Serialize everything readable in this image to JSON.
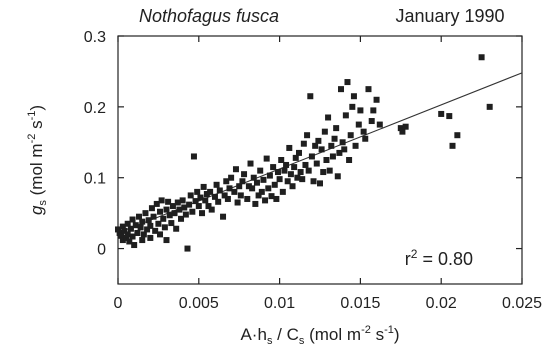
{
  "chart_data": {
    "type": "scatter",
    "title_species": "Nothofagus fusca",
    "title_date": "January 1990",
    "xlabel": {
      "prefix": "A·h",
      "sub1": "s",
      "mid": " / C",
      "sub2": "s",
      "unit": " (mol m",
      "sup": "-2",
      "unit_end": " s",
      "sup2": "-1",
      "close": ")"
    },
    "ylabel": {
      "main": "g",
      "sub": "s",
      "unit": " (mol m",
      "sup": "-2",
      "unit_end": " s",
      "sup2": "-1",
      "close": ")"
    },
    "annotation": {
      "text": "r",
      "sup": "2",
      "rest": " = 0.80"
    },
    "xlim": [
      0,
      0.025
    ],
    "ylim": [
      -0.05,
      0.3
    ],
    "xticks": [
      0,
      0.005,
      0.01,
      0.015,
      0.02,
      0.025
    ],
    "xtick_labels": [
      "0",
      "0.005",
      "0.01",
      "0.015",
      "0.02",
      "0.025"
    ],
    "yticks": [
      0,
      0.1,
      0.2,
      0.3
    ],
    "ytick_labels": [
      "0",
      "0.1",
      "0.2",
      "0.3"
    ],
    "regression": {
      "x": [
        0,
        0.025
      ],
      "y": [
        0.022,
        0.248
      ]
    },
    "points": [
      [
        0.0,
        0.027
      ],
      [
        0.0001,
        0.022
      ],
      [
        0.0002,
        0.018
      ],
      [
        0.0003,
        0.012
      ],
      [
        0.0003,
        0.031
      ],
      [
        0.0004,
        0.025
      ],
      [
        0.0005,
        0.015
      ],
      [
        0.0006,
        0.035
      ],
      [
        0.0006,
        0.02
      ],
      [
        0.0007,
        0.01
      ],
      [
        0.0008,
        0.028
      ],
      [
        0.0009,
        0.041
      ],
      [
        0.0009,
        0.017
      ],
      [
        0.001,
        0.005
      ],
      [
        0.0011,
        0.033
      ],
      [
        0.0012,
        0.022
      ],
      [
        0.0013,
        0.045
      ],
      [
        0.0014,
        0.03
      ],
      [
        0.0015,
        0.012
      ],
      [
        0.0015,
        0.038
      ],
      [
        0.0016,
        0.02
      ],
      [
        0.0017,
        0.05
      ],
      [
        0.0018,
        0.027
      ],
      [
        0.0019,
        0.04
      ],
      [
        0.002,
        0.015
      ],
      [
        0.002,
        0.032
      ],
      [
        0.0021,
        0.057
      ],
      [
        0.0022,
        0.045
      ],
      [
        0.0023,
        0.025
      ],
      [
        0.0024,
        0.063
      ],
      [
        0.0025,
        0.035
      ],
      [
        0.0026,
        0.052
      ],
      [
        0.0026,
        0.02
      ],
      [
        0.0027,
        0.068
      ],
      [
        0.0028,
        0.042
      ],
      [
        0.0029,
        0.03
      ],
      [
        0.003,
        0.055
      ],
      [
        0.003,
        0.012
      ],
      [
        0.0031,
        0.066
      ],
      [
        0.0032,
        0.047
      ],
      [
        0.0033,
        0.036
      ],
      [
        0.0034,
        0.06
      ],
      [
        0.0035,
        0.05
      ],
      [
        0.0036,
        0.028
      ],
      [
        0.0037,
        0.065
      ],
      [
        0.0038,
        0.055
      ],
      [
        0.0039,
        0.042
      ],
      [
        0.004,
        0.068
      ],
      [
        0.0041,
        0.058
      ],
      [
        0.0042,
        0.048
      ],
      [
        0.0043,
        0.0
      ],
      [
        0.0044,
        0.062
      ],
      [
        0.0045,
        0.075
      ],
      [
        0.0046,
        0.052
      ],
      [
        0.0047,
        0.13
      ],
      [
        0.0048,
        0.067
      ],
      [
        0.0049,
        0.08
      ],
      [
        0.005,
        0.06
      ],
      [
        0.0051,
        0.072
      ],
      [
        0.0052,
        0.05
      ],
      [
        0.0053,
        0.087
      ],
      [
        0.0054,
        0.068
      ],
      [
        0.0055,
        0.077
      ],
      [
        0.0056,
        0.06
      ],
      [
        0.0057,
        0.08
      ],
      [
        0.0058,
        0.055
      ],
      [
        0.006,
        0.073
      ],
      [
        0.0061,
        0.09
      ],
      [
        0.0062,
        0.066
      ],
      [
        0.0063,
        0.082
      ],
      [
        0.0065,
        0.045
      ],
      [
        0.0066,
        0.075
      ],
      [
        0.0067,
        0.095
      ],
      [
        0.0068,
        0.07
      ],
      [
        0.0069,
        0.085
      ],
      [
        0.007,
        0.1
      ],
      [
        0.0072,
        0.08
      ],
      [
        0.0073,
        0.112
      ],
      [
        0.0074,
        0.065
      ],
      [
        0.0075,
        0.088
      ],
      [
        0.0076,
        0.075
      ],
      [
        0.0077,
        0.095
      ],
      [
        0.0078,
        0.105
      ],
      [
        0.008,
        0.07
      ],
      [
        0.0081,
        0.088
      ],
      [
        0.0082,
        0.12
      ],
      [
        0.0083,
        0.085
      ],
      [
        0.0084,
        0.1
      ],
      [
        0.0085,
        0.063
      ],
      [
        0.0086,
        0.093
      ],
      [
        0.0087,
        0.075
      ],
      [
        0.0088,
        0.11
      ],
      [
        0.0089,
        0.08
      ],
      [
        0.009,
        0.097
      ],
      [
        0.0091,
        0.068
      ],
      [
        0.0092,
        0.127
      ],
      [
        0.0093,
        0.085
      ],
      [
        0.0094,
        0.103
      ],
      [
        0.0095,
        0.074
      ],
      [
        0.0096,
        0.115
      ],
      [
        0.0097,
        0.09
      ],
      [
        0.0098,
        0.07
      ],
      [
        0.0099,
        0.108
      ],
      [
        0.01,
        0.098
      ],
      [
        0.0101,
        0.125
      ],
      [
        0.0102,
        0.08
      ],
      [
        0.0103,
        0.11
      ],
      [
        0.0104,
        0.118
      ],
      [
        0.0105,
        0.095
      ],
      [
        0.0106,
        0.142
      ],
      [
        0.0107,
        0.105
      ],
      [
        0.0108,
        0.088
      ],
      [
        0.0109,
        0.115
      ],
      [
        0.011,
        0.128
      ],
      [
        0.0111,
        0.1
      ],
      [
        0.0112,
        0.135
      ],
      [
        0.0113,
        0.108
      ],
      [
        0.0114,
        0.098
      ],
      [
        0.0115,
        0.148
      ],
      [
        0.0116,
        0.118
      ],
      [
        0.0117,
        0.16
      ],
      [
        0.0118,
        0.11
      ],
      [
        0.0119,
        0.215
      ],
      [
        0.012,
        0.13
      ],
      [
        0.0121,
        0.095
      ],
      [
        0.0122,
        0.145
      ],
      [
        0.0123,
        0.12
      ],
      [
        0.0124,
        0.152
      ],
      [
        0.0125,
        0.092
      ],
      [
        0.0126,
        0.14
      ],
      [
        0.0127,
        0.108
      ],
      [
        0.0128,
        0.165
      ],
      [
        0.0129,
        0.125
      ],
      [
        0.013,
        0.185
      ],
      [
        0.0131,
        0.11
      ],
      [
        0.0132,
        0.145
      ],
      [
        0.0133,
        0.13
      ],
      [
        0.0134,
        0.155
      ],
      [
        0.0135,
        0.17
      ],
      [
        0.0136,
        0.102
      ],
      [
        0.0137,
        0.135
      ],
      [
        0.0138,
        0.225
      ],
      [
        0.0139,
        0.15
      ],
      [
        0.014,
        0.14
      ],
      [
        0.0141,
        0.188
      ],
      [
        0.0142,
        0.235
      ],
      [
        0.0143,
        0.125
      ],
      [
        0.0144,
        0.16
      ],
      [
        0.0145,
        0.2
      ],
      [
        0.0146,
        0.215
      ],
      [
        0.0147,
        0.145
      ],
      [
        0.0149,
        0.175
      ],
      [
        0.015,
        0.195
      ],
      [
        0.0152,
        0.165
      ],
      [
        0.0153,
        0.155
      ],
      [
        0.0155,
        0.225
      ],
      [
        0.0157,
        0.18
      ],
      [
        0.0158,
        0.195
      ],
      [
        0.016,
        0.21
      ],
      [
        0.0162,
        0.175
      ],
      [
        0.0175,
        0.17
      ],
      [
        0.0176,
        0.165
      ],
      [
        0.0178,
        0.172
      ],
      [
        0.02,
        0.19
      ],
      [
        0.0205,
        0.187
      ],
      [
        0.0207,
        0.145
      ],
      [
        0.021,
        0.16
      ],
      [
        0.0225,
        0.27
      ],
      [
        0.023,
        0.2
      ]
    ]
  }
}
